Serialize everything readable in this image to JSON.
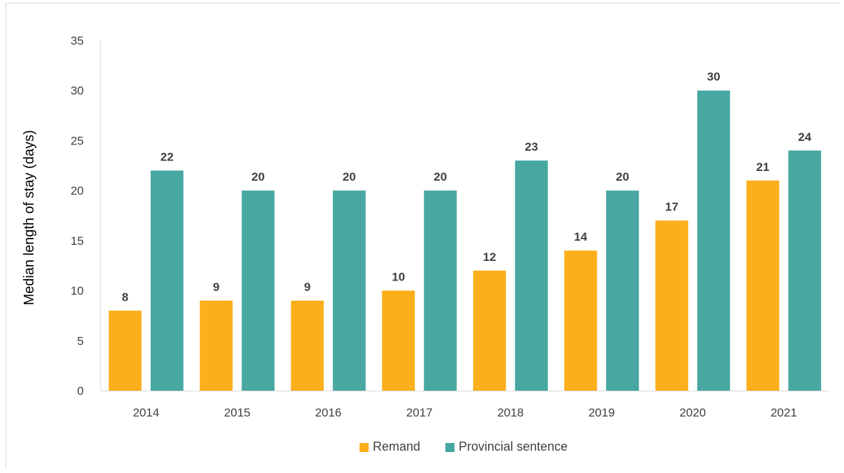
{
  "chart_data": {
    "type": "bar",
    "categories": [
      "2014",
      "2015",
      "2016",
      "2017",
      "2018",
      "2019",
      "2020",
      "2021"
    ],
    "series": [
      {
        "name": "Remand",
        "color": "#FBAF1B",
        "values": [
          8,
          9,
          9,
          10,
          12,
          14,
          17,
          21
        ]
      },
      {
        "name": "Provincial sentence",
        "color": "#48A7A1",
        "values": [
          22,
          20,
          20,
          20,
          23,
          20,
          30,
          24
        ]
      }
    ],
    "title": "",
    "xlabel": "",
    "ylabel": "Median length of stay (days)",
    "ylim": [
      0,
      35
    ],
    "yticks": [
      0,
      5,
      10,
      15,
      20,
      25,
      30,
      35
    ],
    "grid": false,
    "data_labels": true,
    "legend_position": "bottom"
  }
}
